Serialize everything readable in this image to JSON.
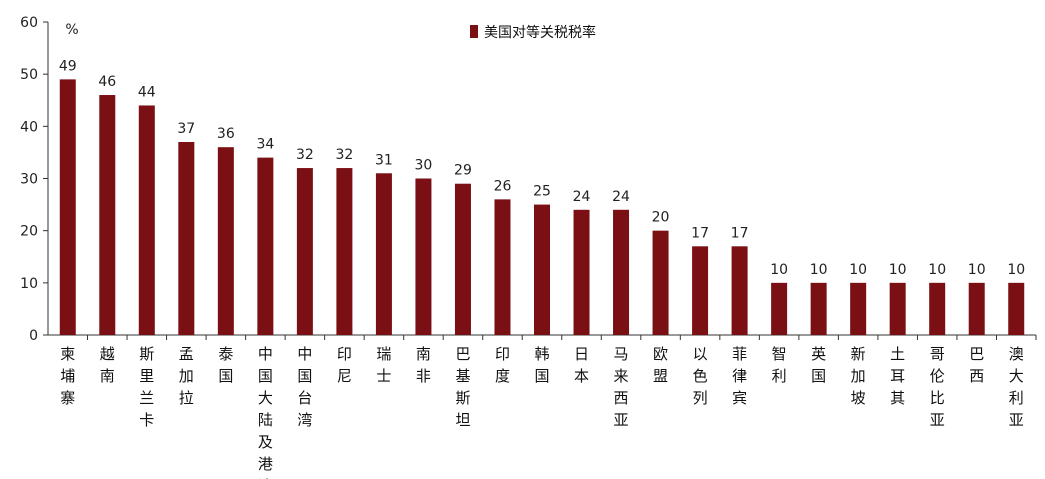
{
  "chart_data": {
    "type": "bar",
    "title": "",
    "xlabel": "",
    "ylabel": "",
    "unit": "%",
    "ylim": [
      0,
      60
    ],
    "yticks": [
      0,
      10,
      20,
      30,
      40,
      50,
      60
    ],
    "grid": false,
    "legend_position": "top-center",
    "bar_color": "#7a0f14",
    "categories": [
      "柬埔寨",
      "越南",
      "斯里兰卡",
      "孟加拉",
      "泰国",
      "中国大陆及港澳",
      "中国台湾",
      "印尼",
      "瑞士",
      "南非",
      "巴基斯坦",
      "印度",
      "韩国",
      "日本",
      "马来西亚",
      "欧盟",
      "以色列",
      "菲律宾",
      "智利",
      "英国",
      "新加坡",
      "土耳其",
      "哥伦比亚",
      "巴西",
      "澳大利亚"
    ],
    "series": [
      {
        "name": "美国对等关税税率",
        "values": [
          49,
          46,
          44,
          37,
          36,
          34,
          32,
          32,
          31,
          30,
          29,
          26,
          25,
          24,
          24,
          20,
          17,
          17,
          10,
          10,
          10,
          10,
          10,
          10,
          10
        ]
      }
    ]
  }
}
